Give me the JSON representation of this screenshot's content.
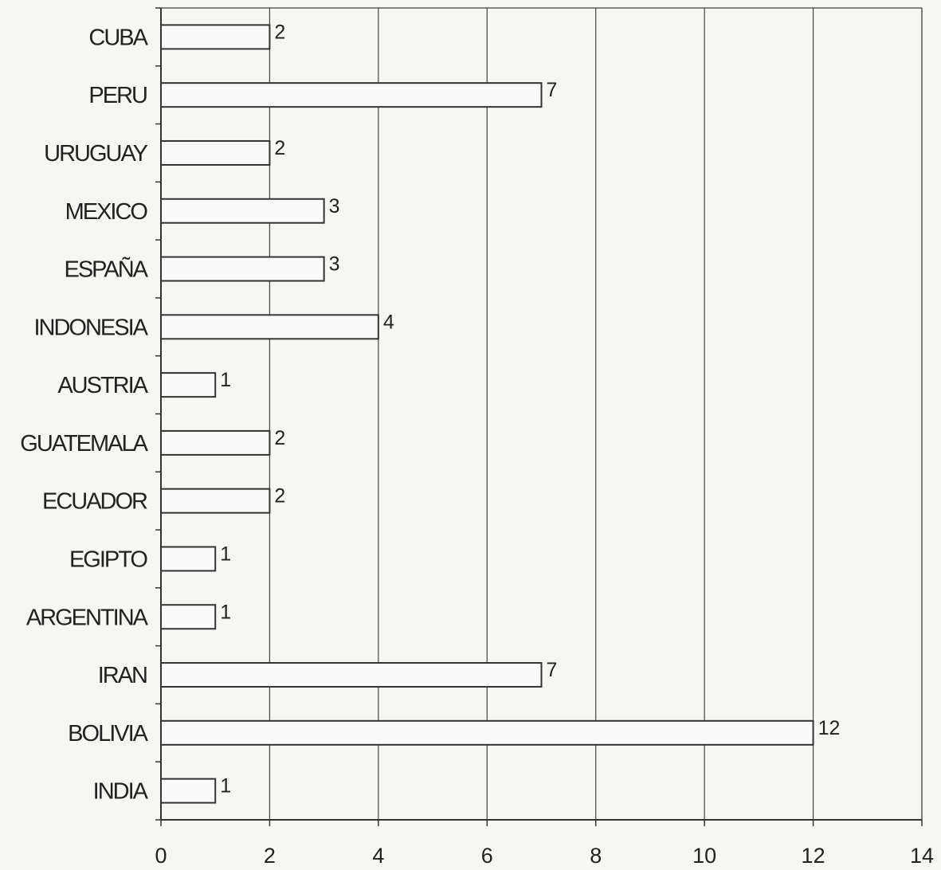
{
  "chart_data": {
    "type": "bar",
    "orientation": "horizontal",
    "categories": [
      "CUBA",
      "PERU",
      "URUGUAY",
      "MEXICO",
      "ESPAÑA",
      "INDONESIA",
      "AUSTRIA",
      "GUATEMALA",
      "ECUADOR",
      "EGIPTO",
      "ARGENTINA",
      "IRAN",
      "BOLIVIA",
      "INDIA"
    ],
    "values": [
      2,
      7,
      2,
      3,
      3,
      4,
      1,
      2,
      2,
      1,
      1,
      7,
      12,
      1
    ],
    "data_labels": [
      "2",
      "7",
      "2",
      "3",
      "3",
      "4",
      "1",
      "2",
      "2",
      "1",
      "1",
      "7",
      "12",
      "1"
    ],
    "x_ticks": [
      "0",
      "2",
      "4",
      "6",
      "8",
      "10",
      "12",
      "14"
    ],
    "xlim": [
      0,
      14
    ],
    "title": "",
    "xlabel": "",
    "ylabel": "",
    "grid": "vertical",
    "legend": "none",
    "colors": {
      "background": "#f6f6f3",
      "bar_fill": "#fafafa",
      "bar_stroke": "#333333",
      "grid": "#444444",
      "text": "#222222"
    }
  }
}
